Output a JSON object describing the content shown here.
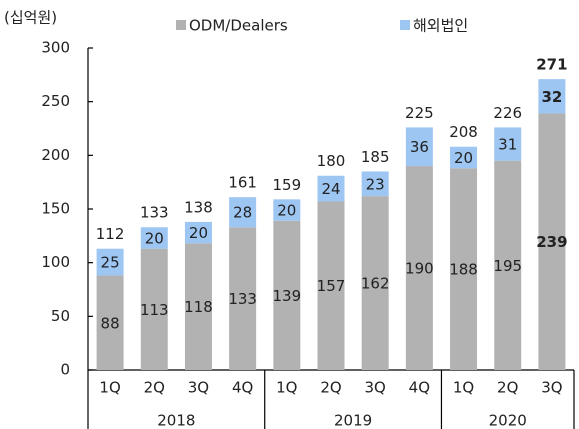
{
  "chart_data": {
    "type": "stacked_bar",
    "unit_label": "(십억원)",
    "groups": [
      {
        "label": "2018",
        "categories": [
          "1Q",
          "2Q",
          "3Q",
          "4Q"
        ]
      },
      {
        "label": "2019",
        "categories": [
          "1Q",
          "2Q",
          "3Q",
          "4Q"
        ]
      },
      {
        "label": "2020",
        "categories": [
          "1Q",
          "2Q",
          "3Q"
        ]
      }
    ],
    "series": [
      {
        "name": "ODM/Dealers",
        "color": "#b2b2b2",
        "values": [
          88,
          113,
          118,
          133,
          139,
          157,
          162,
          190,
          188,
          195,
          239
        ]
      },
      {
        "name": "해외법인",
        "color": "#9dc6f2",
        "values": [
          25,
          20,
          20,
          28,
          20,
          24,
          23,
          36,
          20,
          31,
          32
        ]
      }
    ],
    "totals": [
      112,
      133,
      138,
      161,
      159,
      180,
      185,
      225,
      208,
      226,
      271
    ],
    "ylim": [
      0,
      300
    ],
    "yticks": [
      0,
      50,
      100,
      150,
      200,
      250,
      300
    ]
  }
}
